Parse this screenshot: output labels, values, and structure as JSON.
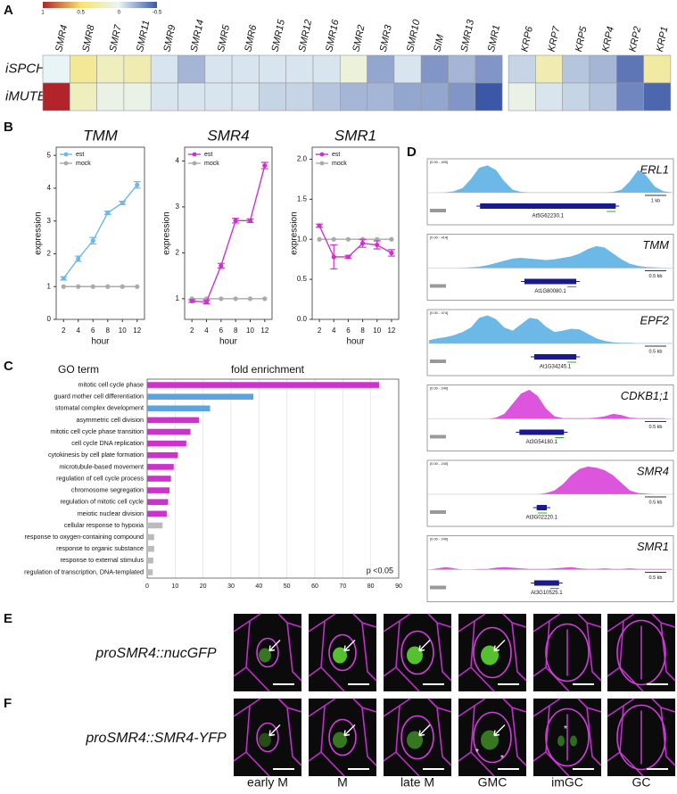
{
  "panel_A": {
    "letter": "A",
    "type": "heatmap",
    "colorbar": {
      "ticks": [
        1,
        0.5,
        0,
        -0.5
      ],
      "colors": [
        "#b2232a",
        "#f7e46c",
        "#e9f4f6",
        "#3c57a6"
      ]
    },
    "rows": [
      "iSPCH",
      "iMUTE"
    ],
    "groups": [
      {
        "columns": [
          "SMR4",
          "SMR8",
          "SMR7",
          "SMR11",
          "SMR9",
          "SMR14",
          "SMR5",
          "SMR6",
          "SMR15",
          "SMR12",
          "SMR16",
          "SMR2",
          "SMR3",
          "SMR10",
          "SIM",
          "SMR13",
          "SMR1"
        ],
        "values": [
          [
            0.0,
            0.35,
            0.2,
            0.25,
            -0.05,
            -0.2,
            -0.05,
            -0.05,
            -0.05,
            -0.05,
            -0.05,
            0.1,
            -0.25,
            -0.05,
            -0.3,
            -0.2,
            -0.3
          ],
          [
            1.0,
            0.2,
            0.05,
            0.05,
            -0.05,
            -0.05,
            -0.05,
            -0.05,
            -0.1,
            -0.1,
            -0.15,
            -0.2,
            -0.2,
            -0.25,
            -0.25,
            -0.3,
            -0.5
          ]
        ]
      },
      {
        "columns": [
          "KRP6",
          "KRP7",
          "KRP5",
          "KRP4",
          "KRP2",
          "KRP1"
        ],
        "values": [
          [
            -0.1,
            0.25,
            -0.15,
            -0.2,
            -0.4,
            0.3
          ],
          [
            0.05,
            -0.05,
            -0.1,
            -0.15,
            -0.35,
            -0.45
          ]
        ]
      }
    ]
  },
  "panel_B": {
    "letter": "B",
    "charts": [
      {
        "type": "line",
        "title": "TMM",
        "x": [
          2,
          4,
          6,
          8,
          10,
          12
        ],
        "xlim": [
          1,
          13
        ],
        "xticks": [
          2,
          4,
          6,
          8,
          10,
          12
        ],
        "ylim": [
          0,
          5.25
        ],
        "yticks": [
          0,
          1,
          2,
          3,
          4,
          5
        ],
        "xlabel": "hour",
        "ylabel": "expression",
        "series": [
          {
            "name": "est",
            "color": "#6cb8e6",
            "values": [
              1.25,
              1.85,
              2.4,
              3.25,
              3.55,
              4.1
            ],
            "errors": [
              0.05,
              0.08,
              0.1,
              0.05,
              0.05,
              0.1
            ]
          },
          {
            "name": "mock",
            "color": "#aaaaaa",
            "values": [
              1,
              1,
              1,
              1,
              1,
              1
            ]
          }
        ]
      },
      {
        "type": "line",
        "title": "SMR4",
        "x": [
          2,
          4,
          6,
          8,
          10,
          12
        ],
        "xlim": [
          1,
          13
        ],
        "xticks": [
          2,
          4,
          6,
          8,
          10,
          12
        ],
        "ylim": [
          0.55,
          4.3
        ],
        "yticks": [
          1,
          2,
          3,
          4
        ],
        "xlabel": "hour",
        "ylabel": "expression",
        "series": [
          {
            "name": "est",
            "color": "#cc33cc",
            "values": [
              0.95,
              0.93,
              1.72,
              2.7,
              2.7,
              3.9
            ],
            "errors": [
              0.03,
              0.04,
              0.05,
              0.05,
              0.04,
              0.07
            ]
          },
          {
            "name": "mock",
            "color": "#aaaaaa",
            "values": [
              1,
              1,
              1,
              1,
              1,
              1
            ]
          }
        ]
      },
      {
        "type": "line",
        "title": "SMR1",
        "x": [
          2,
          4,
          6,
          8,
          10,
          12
        ],
        "xlim": [
          1,
          13
        ],
        "xticks": [
          2,
          4,
          6,
          8,
          10,
          12
        ],
        "ylim": [
          0,
          2.15
        ],
        "yticks": [
          {
            "value": 0,
            "label": "0.0"
          },
          {
            "value": 0.5,
            "label": "0.5"
          },
          {
            "value": 1,
            "label": "1.0"
          },
          {
            "value": 1.5,
            "label": "1.5"
          },
          {
            "value": 2,
            "label": "2.0"
          }
        ],
        "xlabel": "hour",
        "ylabel": "expression",
        "series": [
          {
            "name": "est",
            "color": "#cc33cc",
            "values": [
              1.17,
              0.78,
              0.78,
              0.95,
              0.93,
              0.83
            ],
            "errors": [
              0.02,
              0.15,
              0.02,
              0.05,
              0.05,
              0.04
            ]
          },
          {
            "name": "mock",
            "color": "#aaaaaa",
            "values": [
              1,
              1,
              1,
              1,
              1,
              1
            ]
          }
        ]
      }
    ]
  },
  "panel_C": {
    "letter": "C",
    "type": "bar",
    "header": "GO term",
    "title": "fold enrichment",
    "categories": [
      "mitotic cell cycle phase",
      "guard mother cell differentiation",
      "stomatal complex development",
      "asymmetric cell division",
      "mitotic cell cycle phase transition",
      "cell cycle DNA replication",
      "cytokinesis by cell plate formation",
      "microtubule-based movement",
      "regulation of cell cycle process",
      "chromosome segregation",
      "regulation of mitotic cell cycle",
      "meiotic nuclear division",
      "cellular response to hypoxia",
      "response to oxygen-containing compound",
      "response to organic substance",
      "response to external stimulus",
      "regulation of transcription, DNA-templated"
    ],
    "values": [
      83,
      38,
      22.5,
      18.5,
      15.5,
      14,
      11,
      9.5,
      8.5,
      8,
      7.5,
      7,
      5.5,
      2.5,
      2.5,
      2.2,
      2
    ],
    "colors": [
      "#cc33cc",
      "#5aa5dd",
      "#5aa5dd",
      "#cc33cc",
      "#cc33cc",
      "#cc33cc",
      "#cc33cc",
      "#cc33cc",
      "#cc33cc",
      "#cc33cc",
      "#cc33cc",
      "#cc33cc",
      "#bbbbbb",
      "#bbbbbb",
      "#bbbbbb",
      "#bbbbbb",
      "#bbbbbb"
    ],
    "xlim": [
      0,
      90
    ],
    "xticks": [
      0,
      10,
      20,
      30,
      40,
      50,
      60,
      70,
      80,
      90
    ],
    "grid": true,
    "annotation": "p <0.05"
  },
  "panel_D": {
    "letter": "D",
    "type": "area",
    "tracks": [
      {
        "gene": "ERL1",
        "range": "[0.00 - 400]",
        "ylim": [
          0,
          400
        ],
        "color": "#6cb8e6",
        "locus": "At5G62230.1",
        "scale": "1 kb",
        "profile": [
          0,
          0,
          5,
          20,
          60,
          180,
          330,
          360,
          300,
          150,
          40,
          10,
          5,
          5,
          5,
          5,
          5,
          5,
          5,
          5,
          5,
          5,
          10,
          40,
          150,
          300,
          220,
          80,
          20,
          5
        ]
      },
      {
        "gene": "TMM",
        "range": "[0.00 - 414]",
        "ylim": [
          0,
          414
        ],
        "color": "#6cb8e6",
        "locus": "At1G80080.1",
        "scale": "0.5 kb",
        "profile": [
          0,
          0,
          0,
          0,
          5,
          10,
          20,
          40,
          70,
          100,
          130,
          140,
          130,
          120,
          110,
          120,
          140,
          160,
          200,
          260,
          300,
          280,
          200,
          120,
          60,
          30,
          15,
          10,
          5,
          0
        ]
      },
      {
        "gene": "EPF2",
        "range": "[0.00 - 474]",
        "ylim": [
          0,
          474
        ],
        "color": "#6cb8e6",
        "locus": "At1G34245.1",
        "scale": "0.5 kb",
        "profile": [
          50,
          80,
          100,
          130,
          180,
          250,
          400,
          440,
          380,
          250,
          200,
          300,
          400,
          380,
          260,
          180,
          200,
          230,
          220,
          150,
          80,
          40,
          20,
          10,
          10,
          5,
          5,
          5,
          5,
          5
        ]
      },
      {
        "gene": "CDKB1;1",
        "range": "[0.00 - 240]",
        "ylim": [
          0,
          240
        ],
        "color": "#dd55dd",
        "locus": "At3G54180.1",
        "scale": "0.5 kb",
        "profile": [
          0,
          0,
          0,
          0,
          0,
          0,
          0,
          0,
          10,
          40,
          120,
          200,
          230,
          180,
          80,
          20,
          5,
          5,
          5,
          5,
          10,
          20,
          40,
          30,
          10,
          5,
          5,
          5,
          5,
          0
        ]
      },
      {
        "gene": "SMR4",
        "range": "[0.00 - 240]",
        "ylim": [
          0,
          240
        ],
        "color": "#dd55dd",
        "locus": "At3G02220.1",
        "scale": "0.5 kb",
        "profile": [
          0,
          0,
          0,
          0,
          0,
          0,
          0,
          0,
          0,
          0,
          0,
          0,
          0,
          0,
          10,
          30,
          80,
          150,
          200,
          220,
          210,
          190,
          150,
          90,
          30,
          10,
          5,
          0,
          0,
          0
        ]
      },
      {
        "gene": "SMR1",
        "range": "[0.00 - 240]",
        "ylim": [
          0,
          240
        ],
        "color": "#dd55dd",
        "locus": "At3G10525.1",
        "scale": "0.5 kb",
        "profile": [
          0,
          10,
          20,
          10,
          0,
          0,
          5,
          5,
          15,
          20,
          15,
          10,
          5,
          5,
          5,
          10,
          15,
          20,
          10,
          5,
          5,
          10,
          5,
          5,
          10,
          5,
          5,
          5,
          5,
          5
        ]
      }
    ]
  },
  "panel_E": {
    "letter": "E",
    "label": "proSMR4::nucGFP"
  },
  "panel_F": {
    "letter": "F",
    "label": "proSMR4::SMR4-YFP",
    "asterisk": "*"
  },
  "stages": [
    "early M",
    "M",
    "late M",
    "GMC",
    "imGC",
    "GC"
  ]
}
